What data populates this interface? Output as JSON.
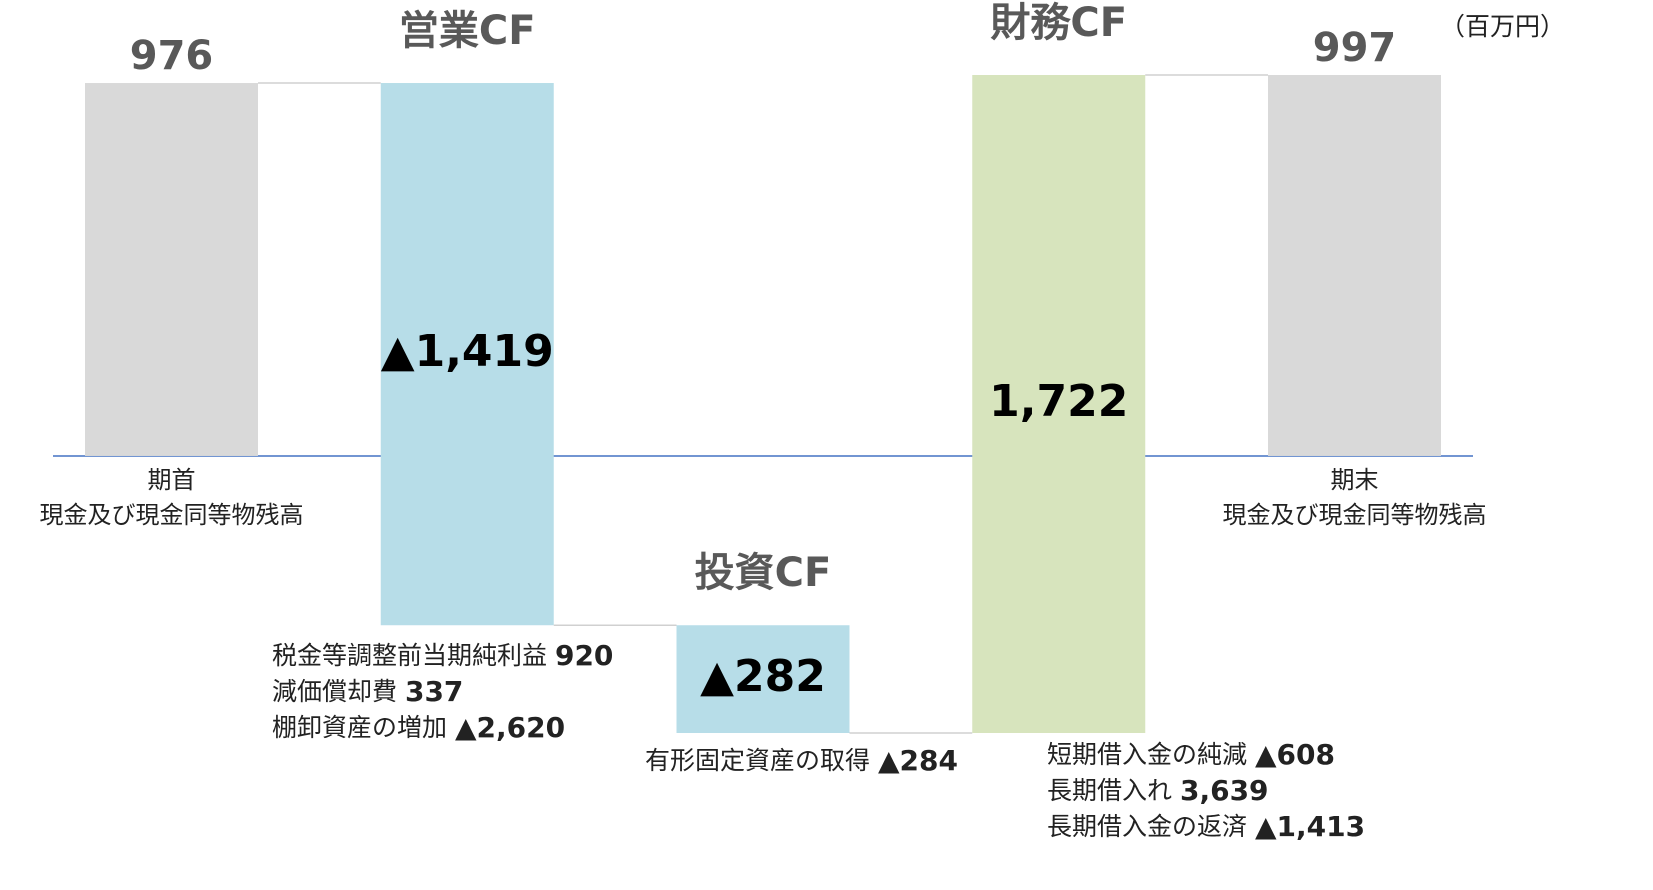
{
  "chart_data": {
    "type": "waterfall",
    "unit": "（百万円）",
    "categories": [
      [
        "期首",
        "現金及び現金同等物残高"
      ],
      "営業CF",
      "投資CF",
      "財務CF",
      [
        "期末",
        "現金及び現金同等物残高"
      ]
    ],
    "kinds": [
      "total",
      "delta",
      "delta",
      "delta",
      "total"
    ],
    "values": [
      976,
      -1419,
      -282,
      1722,
      997
    ],
    "value_labels": [
      "976",
      "▲1,419",
      "▲282",
      "1,722",
      "997"
    ],
    "colors": [
      "#d9d9d9",
      "#b7dde8",
      "#b7dde8",
      "#d7e4bd",
      "#d9d9d9"
    ],
    "details": [
      [],
      [
        {
          "label": "税金等調整前当期純利益",
          "value": 920
        },
        {
          "label": "減価償却費",
          "value": 337
        },
        {
          "label": "棚卸資産の増加",
          "value": -2620,
          "value_label": "▲2,620"
        }
      ],
      [
        {
          "label": "有形固定資産の取得",
          "value": -284,
          "value_label": "▲284"
        }
      ],
      [
        {
          "label": "短期借入金の純減",
          "value": -608,
          "value_label": "▲608"
        },
        {
          "label": "長期借入れ",
          "value": 3639,
          "value_label": "3,639"
        },
        {
          "label": "長期借入金の返済",
          "value": -1413,
          "value_label": "▲1,413"
        }
      ],
      []
    ]
  }
}
